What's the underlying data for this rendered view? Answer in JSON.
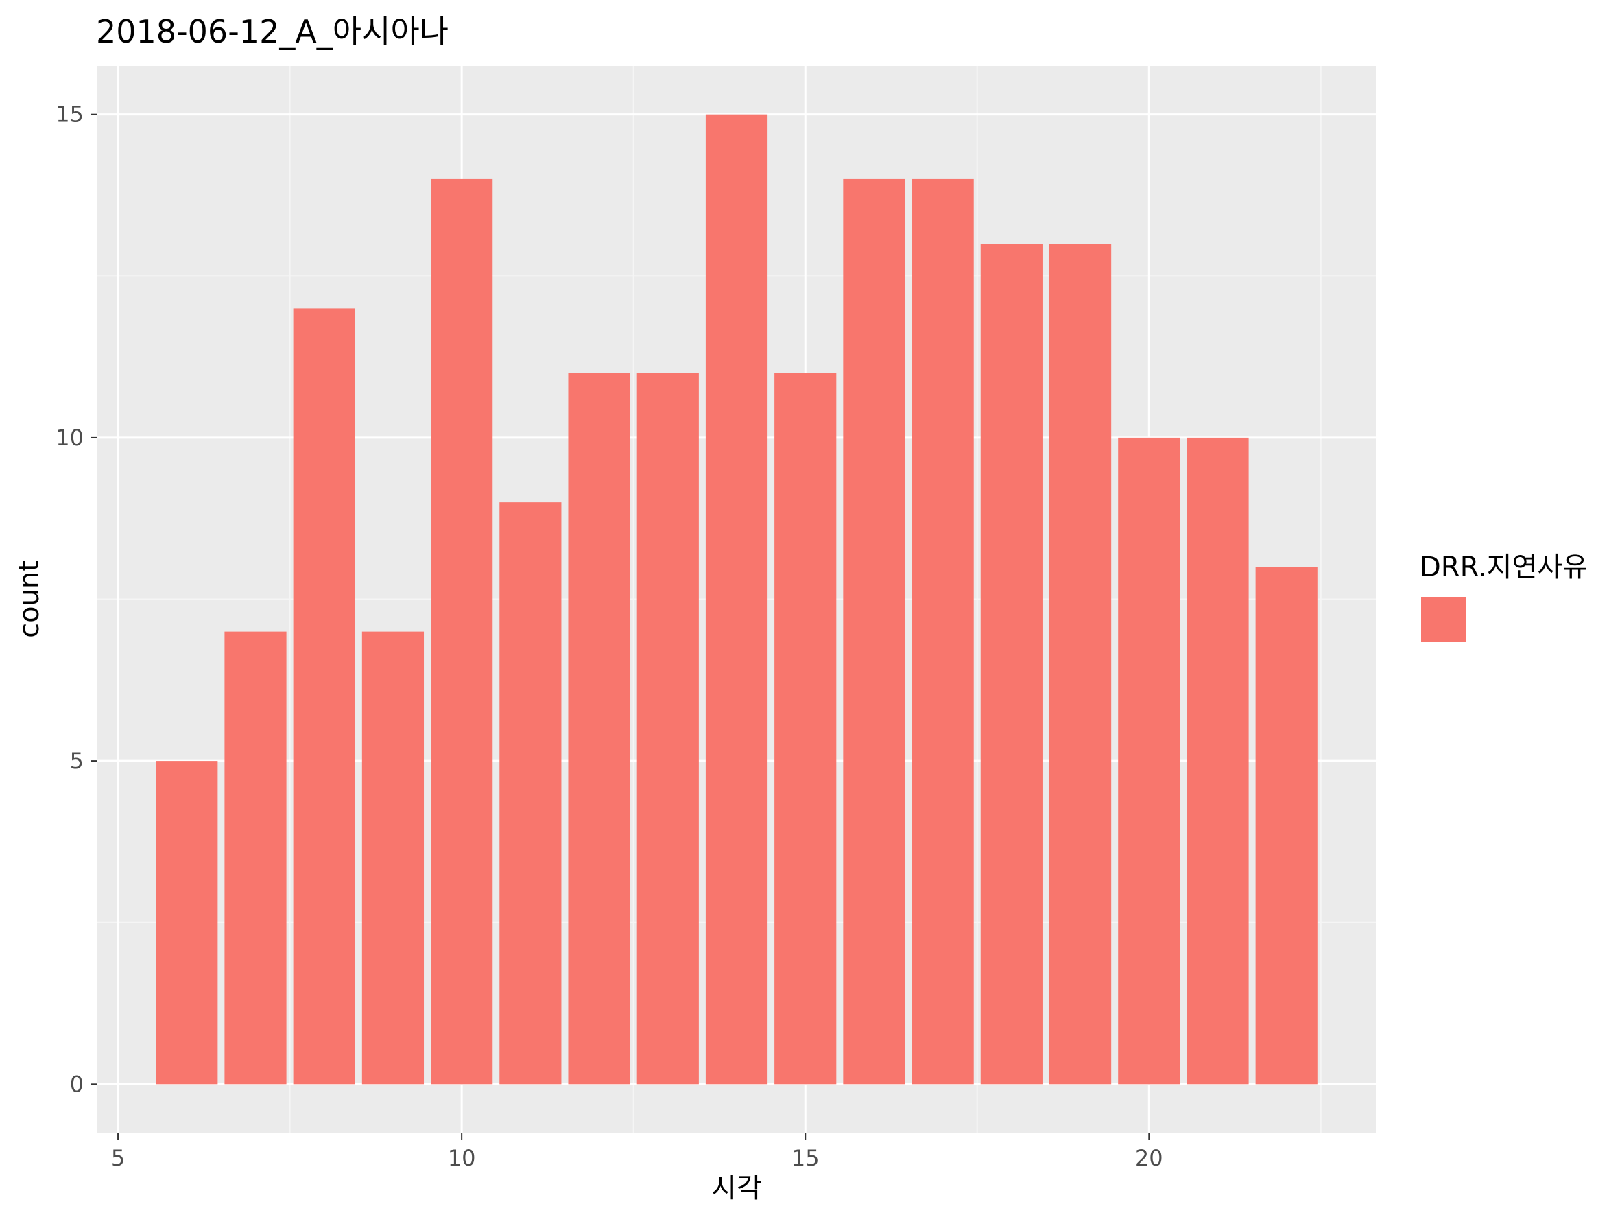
{
  "chart_data": {
    "type": "bar",
    "title": "2018-06-12_A_아시아나",
    "xlabel": "시각",
    "ylabel": "count",
    "x": [
      6,
      7,
      8,
      9,
      10,
      11,
      12,
      13,
      14,
      15,
      16,
      17,
      18,
      19,
      20,
      21,
      22
    ],
    "values": [
      5,
      7,
      12,
      7,
      14,
      9,
      11,
      11,
      15,
      11,
      14,
      14,
      13,
      13,
      10,
      10,
      8
    ],
    "xlim": [
      4.7,
      23.3
    ],
    "ylim": [
      -0.75,
      15.75
    ],
    "xticks": [
      5,
      10,
      15,
      20
    ],
    "xtick_labels": [
      "5",
      "10",
      "15",
      "20"
    ],
    "yticks": [
      0,
      5,
      10,
      15
    ],
    "ytick_labels": [
      "0",
      "5",
      "10",
      "15"
    ],
    "grid": true,
    "legend": {
      "title": "DRR.지연사유",
      "position": "right",
      "entries": [
        {
          "label": "",
          "color": "#F8766D"
        }
      ]
    },
    "colors": {
      "bar": "#F8766D",
      "panel": "#EBEBEB",
      "grid_major": "#FFFFFF",
      "grid_minor": "#F5F5F5",
      "tick_text": "#4D4D4D"
    }
  }
}
